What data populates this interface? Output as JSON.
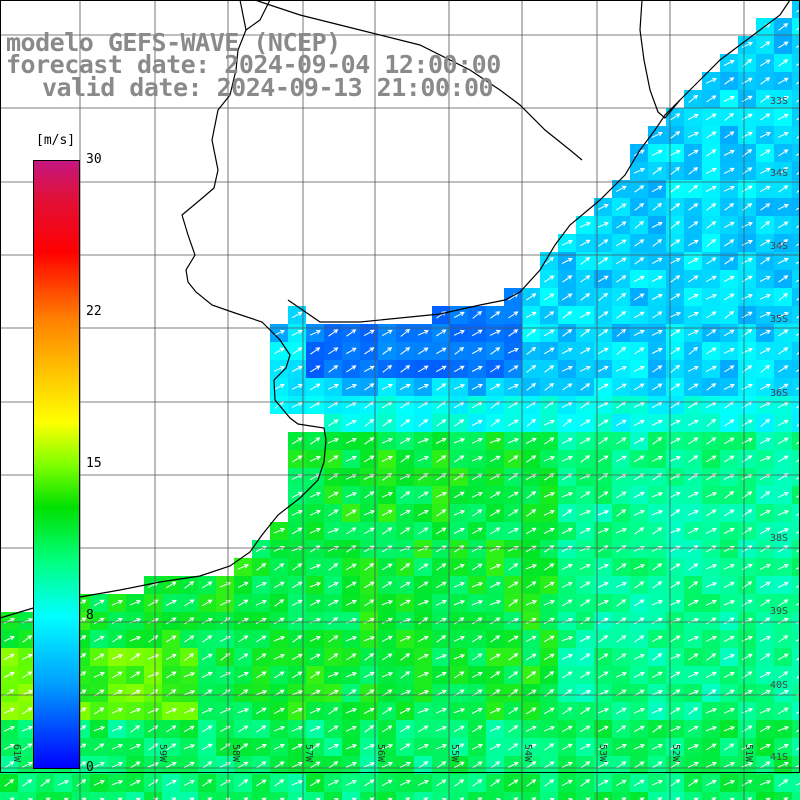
{
  "title": {
    "line1": "modelo GEFS-WAVE (NCEP)",
    "line2": "forecast date: 2024-09-04 12:00:00",
    "line3": "valid date: 2024-09-13 21:00:00"
  },
  "colorbar": {
    "unit": "[m/s]",
    "ticks": [
      "30",
      "22",
      "15",
      "8",
      "0"
    ],
    "range": [
      0,
      30
    ],
    "colors": [
      "#0000ff",
      "#00ffff",
      "#00ff00",
      "#ffff00",
      "#ff0000",
      "#c41680"
    ]
  },
  "longitude_labels": [
    "61W",
    "59W",
    "58W",
    "57W",
    "56W",
    "55W",
    "54W",
    "53W",
    "52W",
    "51W"
  ],
  "latitude_labels": [
    "33S",
    "34S",
    "34S",
    "35S",
    "36S",
    "38S",
    "39S",
    "40S",
    "41S"
  ],
  "colors": {
    "land": "#ffffff",
    "grid": "#444444",
    "coast": "#000000",
    "arrows": "#ffffff",
    "title": "#8a8a8a"
  }
}
